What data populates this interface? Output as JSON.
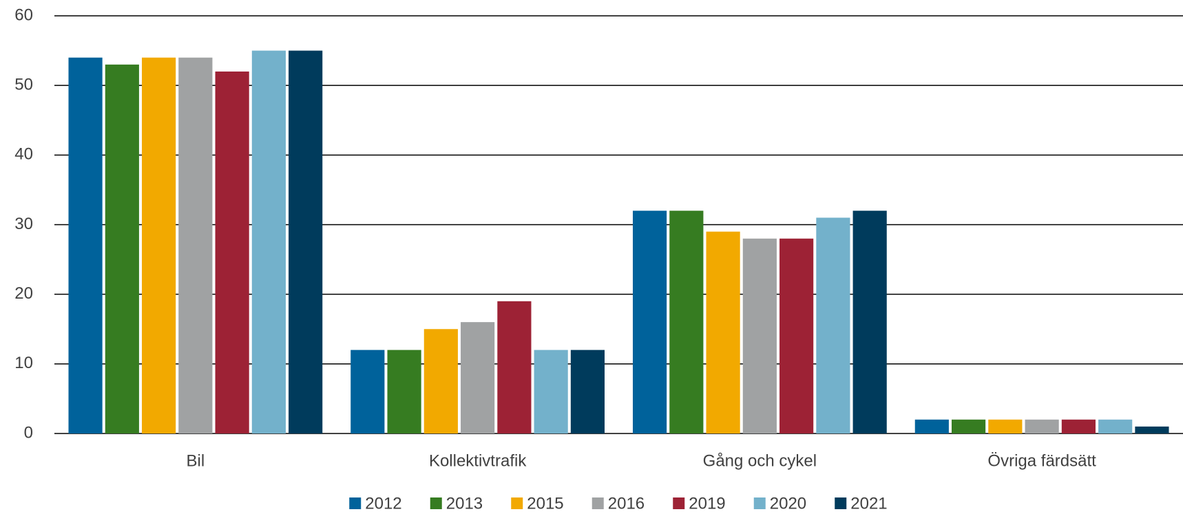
{
  "chart_data": {
    "type": "bar",
    "categories": [
      "Bil",
      "Kollektivtrafik",
      "Gång och cykel",
      "Övriga färdsätt"
    ],
    "series": [
      {
        "name": "2012",
        "color": "#00629b",
        "values": [
          54,
          12,
          32,
          2
        ]
      },
      {
        "name": "2013",
        "color": "#367c21",
        "values": [
          53,
          12,
          32,
          2
        ]
      },
      {
        "name": "2015",
        "color": "#f2a900",
        "values": [
          54,
          15,
          29,
          2
        ]
      },
      {
        "name": "2016",
        "color": "#a0a2a3",
        "values": [
          54,
          16,
          28,
          2
        ]
      },
      {
        "name": "2019",
        "color": "#9d2235",
        "values": [
          52,
          19,
          28,
          2
        ]
      },
      {
        "name": "2020",
        "color": "#73b1cb",
        "values": [
          55,
          12,
          31,
          2
        ]
      },
      {
        "name": "2021",
        "color": "#003b5c",
        "values": [
          55,
          12,
          32,
          1
        ]
      }
    ],
    "ylim": [
      0,
      60
    ],
    "yticks": [
      0,
      10,
      20,
      30,
      40,
      50,
      60
    ],
    "grid": true,
    "legend": "bottom"
  }
}
